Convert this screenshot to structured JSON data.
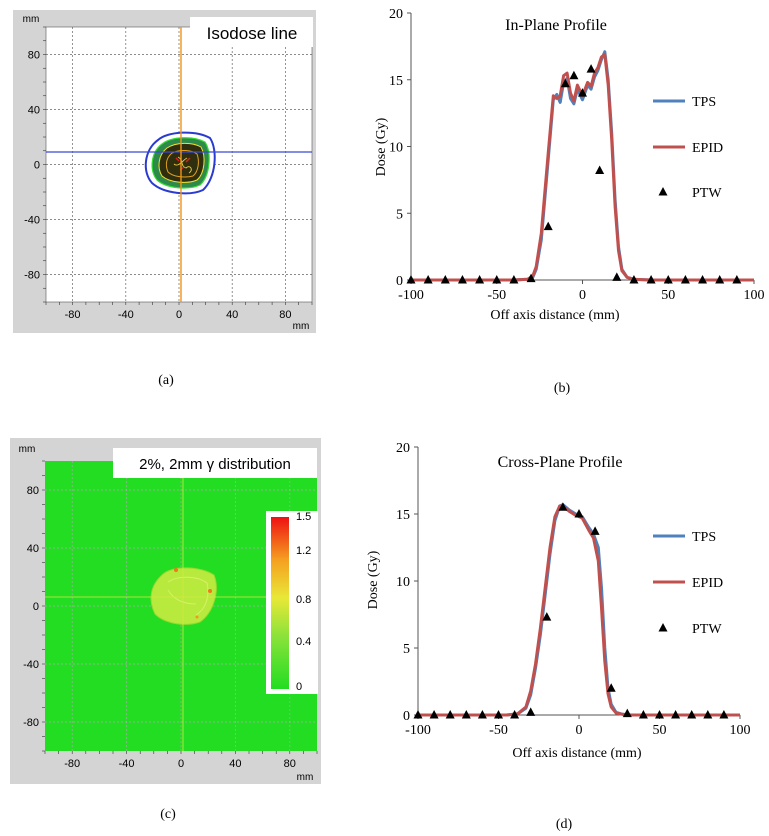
{
  "panels": {
    "a": {
      "caption": "(a)",
      "legend_box": "Isodose line",
      "unit_y": "mm",
      "unit_x": "mm",
      "xticks": [
        -80,
        -40,
        0,
        40,
        80
      ],
      "yticks": [
        80,
        40,
        0,
        -40,
        -80
      ],
      "colors": {
        "bg": "#d4d4d4",
        "plot": "#ffffff",
        "hline": "#3b49d8",
        "vline": "#f29317"
      }
    },
    "b": {
      "caption": "(b)",
      "chart_data": {
        "type": "line",
        "title": "In-Plane Profile",
        "xlabel": "Off axis distance (mm)",
        "ylabel": "Dose (Gy)",
        "xlim": [
          -100,
          100
        ],
        "ylim": [
          0,
          20
        ],
        "xticks": [
          -100,
          -50,
          0,
          50,
          100
        ],
        "yticks": [
          0,
          5,
          10,
          15,
          20
        ],
        "legend_position": "right",
        "series": [
          {
            "name": "TPS",
            "color": "#4f81bd",
            "x": [
              -100,
              -40,
              -32,
              -29,
              -27,
              -24,
              -20,
              -17,
              -15,
              -13,
              -11,
              -9,
              -7,
              -5,
              -3,
              0,
              3,
              5,
              7,
              9,
              11,
              13,
              15,
              17,
              19,
              21,
              23,
              26,
              30,
              40,
              100
            ],
            "y": [
              0,
              0,
              0.05,
              0.2,
              0.8,
              3,
              9,
              13.5,
              13.9,
              13.3,
              14.8,
              15.1,
              13.6,
              13.2,
              14.3,
              13.5,
              14.6,
              14.3,
              15.2,
              15.7,
              16.5,
              17.1,
              15,
              11,
              6,
              2.5,
              0.8,
              0.2,
              0.05,
              0,
              0
            ]
          },
          {
            "name": "EPID",
            "color": "#c0504d",
            "x": [
              -100,
              -40,
              -32,
              -29,
              -27,
              -24,
              -20,
              -17,
              -15,
              -13,
              -11,
              -9,
              -7,
              -5,
              -3,
              0,
              3,
              5,
              7,
              9,
              11,
              13,
              15,
              17,
              19,
              21,
              23,
              26,
              30,
              40,
              100
            ],
            "y": [
              0,
              0,
              0.05,
              0.3,
              1,
              3.5,
              9.5,
              13.8,
              13.6,
              13.8,
              15.3,
              15.5,
              14,
              13.4,
              14.6,
              13.8,
              14.8,
              14.5,
              15.5,
              15.9,
              16.7,
              16.9,
              14.6,
              10.5,
              5.5,
              2.2,
              0.7,
              0.2,
              0.05,
              0,
              0
            ]
          },
          {
            "name": "PTW",
            "color": "#000000",
            "marker": "triangle",
            "x": [
              -100,
              -90,
              -80,
              -70,
              -60,
              -50,
              -40,
              -30,
              -20,
              -10,
              -5,
              0,
              5,
              10,
              20,
              30,
              40,
              50,
              60,
              70,
              80,
              90
            ],
            "y": [
              0,
              0,
              0,
              0,
              0,
              0,
              0,
              0.1,
              4,
              14.7,
              15.3,
              14,
              15.8,
              8.2,
              0.2,
              0,
              0,
              0,
              0,
              0,
              0,
              0
            ]
          }
        ]
      }
    },
    "c": {
      "caption": "(c)",
      "legend_box": "2%, 2mm γ distribution",
      "unit_y": "mm",
      "unit_x": "mm",
      "xticks": [
        -80,
        -40,
        0,
        40,
        80
      ],
      "yticks": [
        80,
        40,
        0,
        -40,
        -80
      ],
      "colorbar_ticks": [
        "1.5",
        "1.2",
        "0.8",
        "0.4",
        "0"
      ],
      "colors": {
        "bg": "#d4d4d4",
        "field": "#22dd22"
      }
    },
    "d": {
      "caption": "(d)",
      "chart_data": {
        "type": "line",
        "title": "Cross-Plane Profile",
        "xlabel": "Off axis distance (mm)",
        "ylabel": "Dose (Gy)",
        "xlim": [
          -100,
          100
        ],
        "ylim": [
          0,
          20
        ],
        "xticks": [
          -100,
          -50,
          0,
          50,
          100
        ],
        "yticks": [
          0,
          5,
          10,
          15,
          20
        ],
        "legend_position": "right",
        "series": [
          {
            "name": "TPS",
            "color": "#4f81bd",
            "x": [
              -100,
              -45,
              -38,
              -33,
              -30,
              -27,
              -24,
              -21,
              -18,
              -15,
              -12,
              -10,
              -6,
              -2,
              2,
              6,
              9,
              12,
              14,
              16,
              18,
              20,
              23,
              27,
              32,
              40,
              100
            ],
            "y": [
              0,
              0,
              0.1,
              0.5,
              1.5,
              3.5,
              6,
              9,
              12,
              14.5,
              15.6,
              15.7,
              15.3,
              15,
              14.8,
              14,
              13.5,
              12.5,
              9.5,
              5,
              2,
              0.8,
              0.2,
              0.05,
              0,
              0,
              0
            ]
          },
          {
            "name": "EPID",
            "color": "#c0504d",
            "x": [
              -100,
              -45,
              -38,
              -33,
              -30,
              -27,
              -24,
              -21,
              -18,
              -15,
              -12,
              -10,
              -6,
              -2,
              2,
              6,
              9,
              12,
              14,
              16,
              18,
              20,
              23,
              27,
              32,
              40,
              100
            ],
            "y": [
              0,
              0,
              0.1,
              0.6,
              1.8,
              3.8,
              6.5,
              9.5,
              12.5,
              14.8,
              15.6,
              15.6,
              15.2,
              14.9,
              14.7,
              13.8,
              13.2,
              11.5,
              8,
              4,
              1.6,
              0.6,
              0.15,
              0.05,
              0,
              0,
              0
            ]
          },
          {
            "name": "PTW",
            "color": "#000000",
            "marker": "triangle",
            "x": [
              -100,
              -90,
              -80,
              -70,
              -60,
              -50,
              -40,
              -30,
              -20,
              -10,
              0,
              10,
              20,
              30,
              40,
              50,
              60,
              70,
              80,
              90
            ],
            "y": [
              0,
              0,
              0,
              0,
              0,
              0,
              0,
              0.2,
              7.3,
              15.5,
              15,
              13.7,
              2,
              0.1,
              0,
              0,
              0,
              0,
              0,
              0
            ]
          }
        ]
      }
    }
  }
}
